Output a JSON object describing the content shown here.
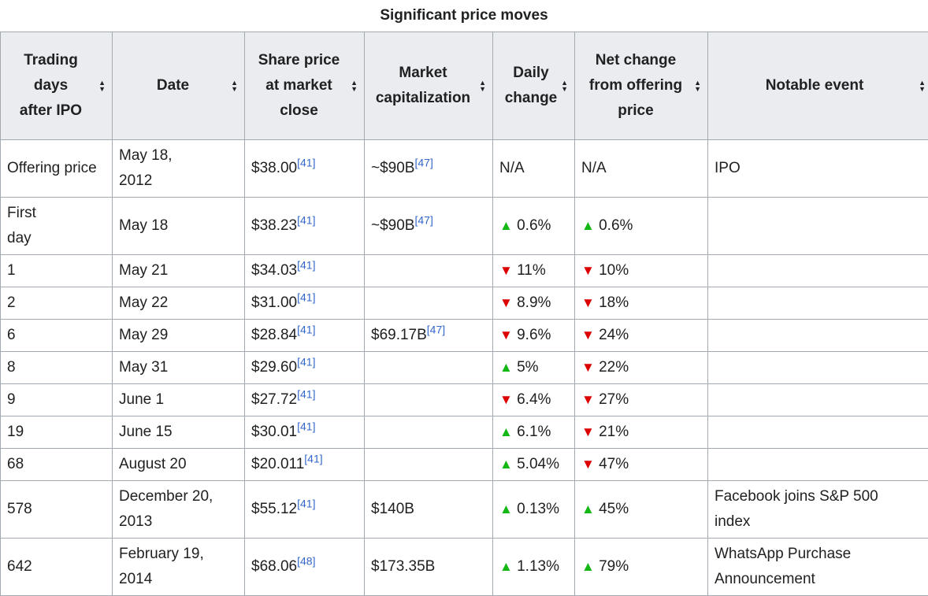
{
  "caption": "Significant price moves",
  "headers": [
    "Trading days after IPO",
    "Date",
    "Share price at market close",
    "Market capitalization",
    "Daily change",
    "Net change from offering price",
    "Notable event"
  ],
  "rows": [
    {
      "day": "Offering price",
      "date": "May 18, 2012",
      "price": "$38.00",
      "price_ref": "[41]",
      "cap": "~$90B",
      "cap_ref": "[47]",
      "daily": "N/A",
      "daily_dir": "",
      "net": "N/A",
      "net_dir": "",
      "event": "IPO"
    },
    {
      "day": "First day",
      "date": "May 18",
      "price": "$38.23",
      "price_ref": "[41]",
      "cap": "~$90B",
      "cap_ref": "[47]",
      "daily": "0.6%",
      "daily_dir": "up",
      "net": "0.6%",
      "net_dir": "up",
      "event": ""
    },
    {
      "day": "1",
      "date": "May 21",
      "price": "$34.03",
      "price_ref": "[41]",
      "cap": "",
      "cap_ref": "",
      "daily": "11%",
      "daily_dir": "down",
      "net": "10%",
      "net_dir": "down",
      "event": ""
    },
    {
      "day": "2",
      "date": "May 22",
      "price": "$31.00",
      "price_ref": "[41]",
      "cap": "",
      "cap_ref": "",
      "daily": "8.9%",
      "daily_dir": "down",
      "net": "18%",
      "net_dir": "down",
      "event": ""
    },
    {
      "day": "6",
      "date": "May 29",
      "price": "$28.84",
      "price_ref": "[41]",
      "cap": "$69.17B",
      "cap_ref": "[47]",
      "daily": "9.6%",
      "daily_dir": "down",
      "net": "24%",
      "net_dir": "down",
      "event": ""
    },
    {
      "day": "8",
      "date": "May 31",
      "price": "$29.60",
      "price_ref": "[41]",
      "cap": "",
      "cap_ref": "",
      "daily": "5%",
      "daily_dir": "up",
      "net": "22%",
      "net_dir": "down",
      "event": ""
    },
    {
      "day": "9",
      "date": "June 1",
      "price": "$27.72",
      "price_ref": "[41]",
      "cap": "",
      "cap_ref": "",
      "daily": "6.4%",
      "daily_dir": "down",
      "net": "27%",
      "net_dir": "down",
      "event": ""
    },
    {
      "day": "19",
      "date": "June 15",
      "price": "$30.01",
      "price_ref": "[41]",
      "cap": "",
      "cap_ref": "",
      "daily": "6.1%",
      "daily_dir": "up",
      "net": "21%",
      "net_dir": "down",
      "event": ""
    },
    {
      "day": "68",
      "date": "August 20",
      "price": "$20.011",
      "price_ref": "[41]",
      "cap": "",
      "cap_ref": "",
      "daily": "5.04%",
      "daily_dir": "up",
      "net": "47%",
      "net_dir": "down",
      "event": ""
    },
    {
      "day": "578",
      "date": "December 20, 2013",
      "price": "$55.12",
      "price_ref": "[41]",
      "cap": "$140B",
      "cap_ref": "",
      "daily": "0.13%",
      "daily_dir": "up",
      "net": "45%",
      "net_dir": "up",
      "event": "Facebook joins S&P 500 index"
    },
    {
      "day": "642",
      "date": "February 19, 2014",
      "price": "$68.06",
      "price_ref": "[48]",
      "cap": "$173.35B",
      "cap_ref": "",
      "daily": "1.13%",
      "daily_dir": "up",
      "net": "79%",
      "net_dir": "up",
      "event": "WhatsApp Purchase Announcement"
    }
  ]
}
